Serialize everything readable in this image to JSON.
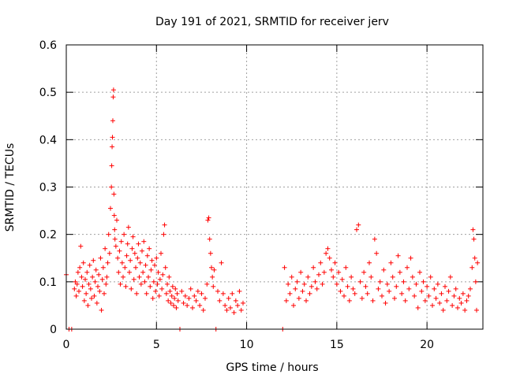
{
  "chart_data": {
    "type": "scatter",
    "title": "Day 191 of 2021, SRMTID for receiver jerv",
    "xlabel": "GPS time / hours",
    "ylabel": "SRMTID / TECUs",
    "xlim": [
      0,
      23.1
    ],
    "ylim": [
      0,
      0.6
    ],
    "xticks": [
      0,
      5,
      10,
      15,
      20
    ],
    "yticks": [
      0,
      0.1,
      0.2,
      0.3,
      0.4,
      0.5,
      0.6
    ],
    "grid": true,
    "marker": "+",
    "color": "#ff0000",
    "series": [
      {
        "name": "SRMTID",
        "x": [
          0.0,
          0.15,
          0.3,
          0.45,
          0.5,
          0.55,
          0.6,
          0.65,
          0.7,
          0.75,
          0.8,
          0.85,
          0.9,
          0.95,
          1.0,
          1.05,
          1.1,
          1.15,
          1.2,
          1.25,
          1.3,
          1.35,
          1.4,
          1.45,
          1.5,
          1.55,
          1.6,
          1.65,
          1.7,
          1.75,
          1.8,
          1.85,
          1.9,
          1.95,
          2.0,
          2.05,
          2.1,
          2.15,
          2.2,
          2.25,
          2.3,
          2.35,
          2.4,
          2.45,
          2.5,
          2.52,
          2.54,
          2.56,
          2.58,
          2.6,
          2.62,
          2.64,
          2.66,
          2.68,
          2.7,
          2.75,
          2.8,
          2.85,
          2.9,
          2.95,
          3.0,
          3.05,
          3.1,
          3.15,
          3.2,
          3.25,
          3.3,
          3.35,
          3.4,
          3.45,
          3.5,
          3.55,
          3.6,
          3.65,
          3.7,
          3.75,
          3.8,
          3.85,
          3.9,
          3.95,
          4.0,
          4.05,
          4.1,
          4.15,
          4.2,
          4.25,
          4.3,
          4.35,
          4.4,
          4.45,
          4.5,
          4.55,
          4.6,
          4.65,
          4.7,
          4.75,
          4.8,
          4.85,
          4.9,
          4.95,
          5.0,
          5.05,
          5.1,
          5.15,
          5.2,
          5.25,
          5.3,
          5.35,
          5.4,
          5.45,
          5.5,
          5.55,
          5.6,
          5.65,
          5.7,
          5.75,
          5.8,
          5.85,
          5.9,
          5.95,
          6.0,
          6.05,
          6.1,
          6.15,
          6.2,
          6.3,
          6.4,
          6.5,
          6.6,
          6.7,
          6.8,
          6.9,
          7.0,
          7.1,
          7.2,
          7.3,
          7.4,
          7.5,
          7.6,
          7.7,
          7.8,
          7.85,
          7.9,
          7.95,
          8.0,
          8.05,
          8.1,
          8.15,
          8.2,
          8.3,
          8.4,
          8.5,
          8.6,
          8.7,
          8.8,
          8.9,
          9.0,
          9.1,
          9.2,
          9.3,
          9.4,
          9.5,
          9.6,
          9.7,
          9.8,
          12.0,
          12.1,
          12.2,
          12.3,
          12.4,
          12.5,
          12.6,
          12.7,
          12.8,
          12.9,
          13.0,
          13.1,
          13.2,
          13.3,
          13.4,
          13.5,
          13.6,
          13.7,
          13.8,
          13.9,
          14.0,
          14.1,
          14.2,
          14.3,
          14.4,
          14.5,
          14.6,
          14.7,
          14.8,
          14.9,
          15.0,
          15.1,
          15.2,
          15.3,
          15.4,
          15.5,
          15.6,
          15.7,
          15.8,
          15.9,
          16.0,
          16.1,
          16.2,
          16.3,
          16.4,
          16.5,
          16.6,
          16.7,
          16.8,
          16.9,
          17.0,
          17.1,
          17.2,
          17.3,
          17.4,
          17.5,
          17.6,
          17.7,
          17.8,
          17.9,
          18.0,
          18.1,
          18.2,
          18.3,
          18.4,
          18.5,
          18.6,
          18.7,
          18.8,
          18.9,
          19.0,
          19.1,
          19.2,
          19.3,
          19.4,
          19.5,
          19.6,
          19.7,
          19.8,
          19.9,
          20.0,
          20.1,
          20.2,
          20.3,
          20.4,
          20.5,
          20.6,
          20.7,
          20.8,
          20.9,
          21.0,
          21.1,
          21.2,
          21.3,
          21.4,
          21.5,
          21.6,
          21.7,
          21.8,
          21.9,
          22.0,
          22.1,
          22.2,
          22.3,
          22.4,
          22.5,
          22.55,
          22.6,
          22.65,
          22.7,
          22.75,
          22.8
        ],
        "y": [
          0.115,
          0.0,
          0.0,
          0.085,
          0.1,
          0.07,
          0.095,
          0.12,
          0.08,
          0.13,
          0.175,
          0.11,
          0.09,
          0.14,
          0.06,
          0.105,
          0.075,
          0.12,
          0.05,
          0.095,
          0.135,
          0.085,
          0.065,
          0.11,
          0.145,
          0.07,
          0.1,
          0.125,
          0.055,
          0.09,
          0.115,
          0.08,
          0.15,
          0.04,
          0.105,
          0.13,
          0.075,
          0.17,
          0.095,
          0.11,
          0.14,
          0.2,
          0.16,
          0.255,
          0.3,
          0.345,
          0.385,
          0.405,
          0.44,
          0.49,
          0.505,
          0.285,
          0.24,
          0.21,
          0.19,
          0.175,
          0.23,
          0.15,
          0.12,
          0.165,
          0.095,
          0.185,
          0.14,
          0.11,
          0.2,
          0.13,
          0.09,
          0.155,
          0.18,
          0.215,
          0.12,
          0.145,
          0.085,
          0.17,
          0.195,
          0.105,
          0.16,
          0.13,
          0.075,
          0.15,
          0.18,
          0.11,
          0.14,
          0.095,
          0.165,
          0.12,
          0.185,
          0.1,
          0.135,
          0.075,
          0.155,
          0.11,
          0.17,
          0.09,
          0.125,
          0.145,
          0.065,
          0.1,
          0.135,
          0.08,
          0.15,
          0.095,
          0.12,
          0.07,
          0.105,
          0.16,
          0.085,
          0.115,
          0.2,
          0.22,
          0.13,
          0.075,
          0.095,
          0.06,
          0.11,
          0.08,
          0.055,
          0.07,
          0.09,
          0.05,
          0.065,
          0.085,
          0.045,
          0.075,
          0.06,
          0.0,
          0.08,
          0.055,
          0.07,
          0.05,
          0.065,
          0.085,
          0.045,
          0.07,
          0.06,
          0.08,
          0.05,
          0.075,
          0.04,
          0.065,
          0.095,
          0.23,
          0.235,
          0.19,
          0.16,
          0.13,
          0.11,
          0.09,
          0.125,
          0.0,
          0.08,
          0.06,
          0.14,
          0.075,
          0.05,
          0.04,
          0.065,
          0.045,
          0.075,
          0.035,
          0.06,
          0.05,
          0.08,
          0.04,
          0.055,
          0.0,
          0.13,
          0.06,
          0.095,
          0.075,
          0.11,
          0.05,
          0.085,
          0.1,
          0.065,
          0.12,
          0.08,
          0.095,
          0.06,
          0.11,
          0.075,
          0.09,
          0.13,
          0.1,
          0.085,
          0.115,
          0.14,
          0.095,
          0.12,
          0.16,
          0.17,
          0.15,
          0.125,
          0.11,
          0.14,
          0.095,
          0.12,
          0.08,
          0.105,
          0.07,
          0.13,
          0.09,
          0.06,
          0.11,
          0.085,
          0.075,
          0.21,
          0.22,
          0.1,
          0.065,
          0.12,
          0.09,
          0.075,
          0.14,
          0.11,
          0.06,
          0.19,
          0.16,
          0.085,
          0.1,
          0.07,
          0.125,
          0.055,
          0.095,
          0.08,
          0.14,
          0.11,
          0.065,
          0.09,
          0.155,
          0.12,
          0.075,
          0.1,
          0.06,
          0.13,
          0.085,
          0.15,
          0.11,
          0.07,
          0.095,
          0.045,
          0.12,
          0.08,
          0.1,
          0.06,
          0.09,
          0.07,
          0.11,
          0.05,
          0.085,
          0.065,
          0.095,
          0.055,
          0.075,
          0.04,
          0.09,
          0.06,
          0.08,
          0.11,
          0.05,
          0.07,
          0.085,
          0.045,
          0.065,
          0.055,
          0.075,
          0.04,
          0.06,
          0.07,
          0.085,
          0.13,
          0.21,
          0.19,
          0.15,
          0.1,
          0.04,
          0.14
        ]
      }
    ]
  }
}
